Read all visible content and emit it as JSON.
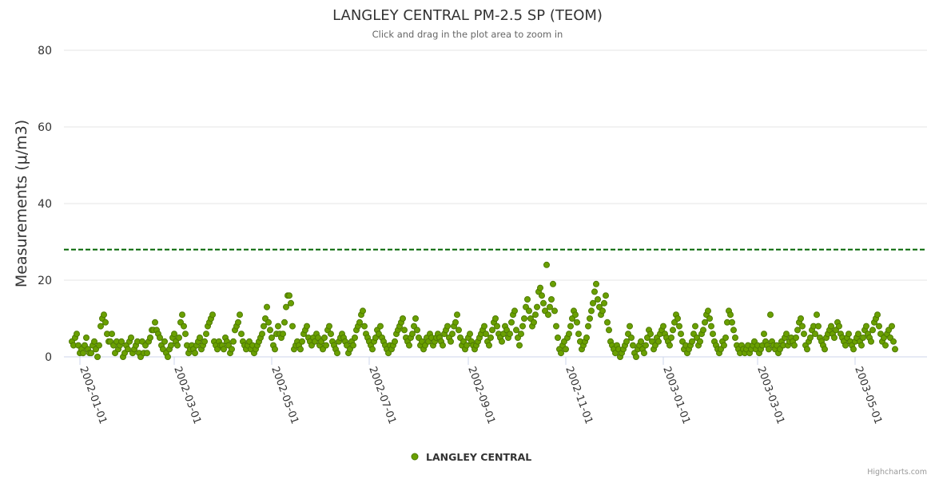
{
  "chart_data": {
    "type": "scatter",
    "title": "LANGLEY CENTRAL PM-2.5 SP (TEOM)",
    "subtitle": "Click and drag in the plot area to zoom in",
    "ylabel": "Measurements (μ/m3)",
    "xlabel": "",
    "ylim": [
      0,
      80
    ],
    "yticks": [
      0,
      20,
      40,
      60,
      80
    ],
    "xrange": [
      "2001-12-22",
      "2003-06-15"
    ],
    "xticks": [
      "2002-01-01",
      "2002-03-01",
      "2002-05-01",
      "2002-07-01",
      "2002-09-01",
      "2002-11-01",
      "2003-01-01",
      "2003-03-01",
      "2003-05-01"
    ],
    "threshold": {
      "value": 28,
      "color": "#006400",
      "style": "dashed"
    },
    "series": [
      {
        "name": "LANGLEY CENTRAL",
        "color": "#6aa000",
        "start_date": "2001-12-27",
        "step_days": 1,
        "values": [
          4,
          3,
          5,
          6,
          3,
          1,
          2,
          1,
          3,
          5,
          2,
          1,
          1,
          3,
          4,
          2,
          0,
          3,
          8,
          10,
          11,
          9,
          6,
          4,
          4,
          6,
          3,
          1,
          4,
          2,
          3,
          4,
          0,
          1,
          3,
          2,
          4,
          5,
          1,
          2,
          3,
          4,
          1,
          0,
          4,
          1,
          3,
          1,
          4,
          5,
          7,
          7,
          9,
          7,
          6,
          5,
          3,
          2,
          4,
          1,
          0,
          2,
          3,
          5,
          6,
          4,
          3,
          5,
          9,
          11,
          8,
          6,
          3,
          1,
          2,
          3,
          2,
          1,
          3,
          4,
          5,
          2,
          3,
          4,
          6,
          8,
          9,
          10,
          11,
          4,
          3,
          2,
          4,
          3,
          3,
          2,
          5,
          4,
          3,
          1,
          2,
          4,
          7,
          8,
          9,
          11,
          6,
          4,
          3,
          2,
          3,
          4,
          2,
          3,
          1,
          2,
          3,
          4,
          5,
          6,
          8,
          10,
          13,
          9,
          7,
          5,
          3,
          2,
          6,
          8,
          6,
          5,
          6,
          9,
          13,
          16,
          16,
          14,
          8,
          2,
          3,
          4,
          3,
          2,
          4,
          6,
          7,
          8,
          5,
          4,
          3,
          5,
          4,
          6,
          5,
          3,
          4,
          2,
          5,
          3,
          7,
          8,
          6,
          4,
          3,
          2,
          1,
          4,
          5,
          6,
          5,
          4,
          3,
          1,
          2,
          4,
          3,
          5,
          7,
          8,
          9,
          11,
          12,
          8,
          6,
          5,
          4,
          3,
          2,
          4,
          5,
          7,
          6,
          8,
          5,
          4,
          3,
          2,
          1,
          3,
          2,
          3,
          4,
          6,
          7,
          8,
          9,
          10,
          7,
          5,
          4,
          3,
          5,
          6,
          8,
          10,
          7,
          5,
          3,
          4,
          2,
          3,
          5,
          4,
          6,
          5,
          3,
          4,
          5,
          6,
          5,
          4,
          3,
          6,
          7,
          8,
          5,
          4,
          6,
          8,
          9,
          11,
          7,
          5,
          3,
          4,
          2,
          3,
          5,
          6,
          4,
          3,
          2,
          3,
          4,
          5,
          6,
          7,
          8,
          6,
          4,
          3,
          5,
          7,
          9,
          10,
          8,
          6,
          5,
          4,
          6,
          8,
          7,
          5,
          6,
          9,
          11,
          12,
          7,
          5,
          3,
          6,
          8,
          10,
          13,
          15,
          12,
          10,
          8,
          9,
          11,
          13,
          17,
          18,
          16,
          14,
          12,
          24,
          11,
          13,
          15,
          19,
          12,
          8,
          5,
          2,
          1,
          3,
          4,
          2,
          5,
          6,
          8,
          10,
          12,
          11,
          9,
          6,
          4,
          2,
          3,
          4,
          5,
          8,
          10,
          12,
          14,
          17,
          19,
          15,
          13,
          11,
          12,
          14,
          16,
          9,
          7,
          4,
          3,
          2,
          1,
          3,
          2,
          0,
          1,
          2,
          3,
          4,
          6,
          8,
          5,
          3,
          1,
          0,
          2,
          3,
          4,
          2,
          1,
          3,
          5,
          7,
          6,
          4,
          2,
          3,
          5,
          4,
          6,
          7,
          8,
          6,
          5,
          4,
          3,
          5,
          7,
          9,
          11,
          10,
          8,
          6,
          4,
          2,
          3,
          1,
          2,
          3,
          4,
          6,
          8,
          5,
          3,
          4,
          6,
          7,
          9,
          11,
          12,
          10,
          8,
          6,
          4,
          3,
          2,
          1,
          2,
          4,
          3,
          5,
          9,
          12,
          11,
          9,
          7,
          5,
          3,
          2,
          1,
          3,
          2,
          1,
          2,
          3,
          1,
          2,
          3,
          4,
          2,
          3,
          1,
          2,
          3,
          6,
          4,
          3,
          2,
          11,
          4,
          3,
          2,
          3,
          1,
          2,
          4,
          3,
          5,
          6,
          3,
          4,
          5,
          4,
          3,
          5,
          7,
          9,
          10,
          8,
          6,
          3,
          2,
          4,
          5,
          7,
          8,
          6,
          11,
          8,
          5,
          4,
          3,
          2,
          5,
          6,
          7,
          8,
          6,
          5,
          7,
          9,
          8,
          6,
          5,
          4,
          3,
          5,
          6,
          4,
          3,
          2,
          4,
          5,
          6,
          4,
          3,
          5,
          7,
          8,
          6,
          5,
          4,
          7,
          9,
          10,
          11,
          8,
          6,
          4,
          5,
          3,
          6,
          7,
          5,
          8,
          4,
          2
        ]
      }
    ]
  },
  "legend": {
    "label": "LANGLEY CENTRAL"
  },
  "credits": "Highcharts.com"
}
